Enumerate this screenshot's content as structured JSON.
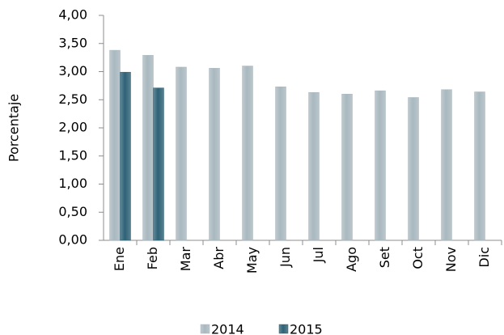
{
  "chart_data": {
    "type": "bar",
    "y_axis_label": "Porcentaje",
    "categories": [
      "Ene",
      "Feb",
      "Mar",
      "Abr",
      "May",
      "Jun",
      "Jul",
      "Ago",
      "Set",
      "Oct",
      "Nov",
      "Dic"
    ],
    "series": [
      {
        "name": "2014",
        "color": "#a9b8bf",
        "values": [
          3.38,
          3.29,
          3.08,
          3.06,
          3.1,
          2.73,
          2.63,
          2.6,
          2.66,
          2.54,
          2.68,
          2.64
        ]
      },
      {
        "name": "2015",
        "color": "#2e6276",
        "values": [
          2.99,
          2.71,
          null,
          null,
          null,
          null,
          null,
          null,
          null,
          null,
          null,
          null
        ]
      }
    ],
    "ylim": [
      0,
      4
    ],
    "yticks": [
      {
        "value": 0,
        "label": "0,00"
      },
      {
        "value": 0.5,
        "label": "0,50"
      },
      {
        "value": 1,
        "label": "1,00"
      },
      {
        "value": 1.5,
        "label": "1,50"
      },
      {
        "value": 2,
        "label": "2,00"
      },
      {
        "value": 2.5,
        "label": "2,50"
      },
      {
        "value": 3,
        "label": "3,00"
      },
      {
        "value": 3.5,
        "label": "3,50"
      },
      {
        "value": 4,
        "label": "4,00"
      }
    ],
    "grid": false,
    "legend_position": "bottom"
  }
}
